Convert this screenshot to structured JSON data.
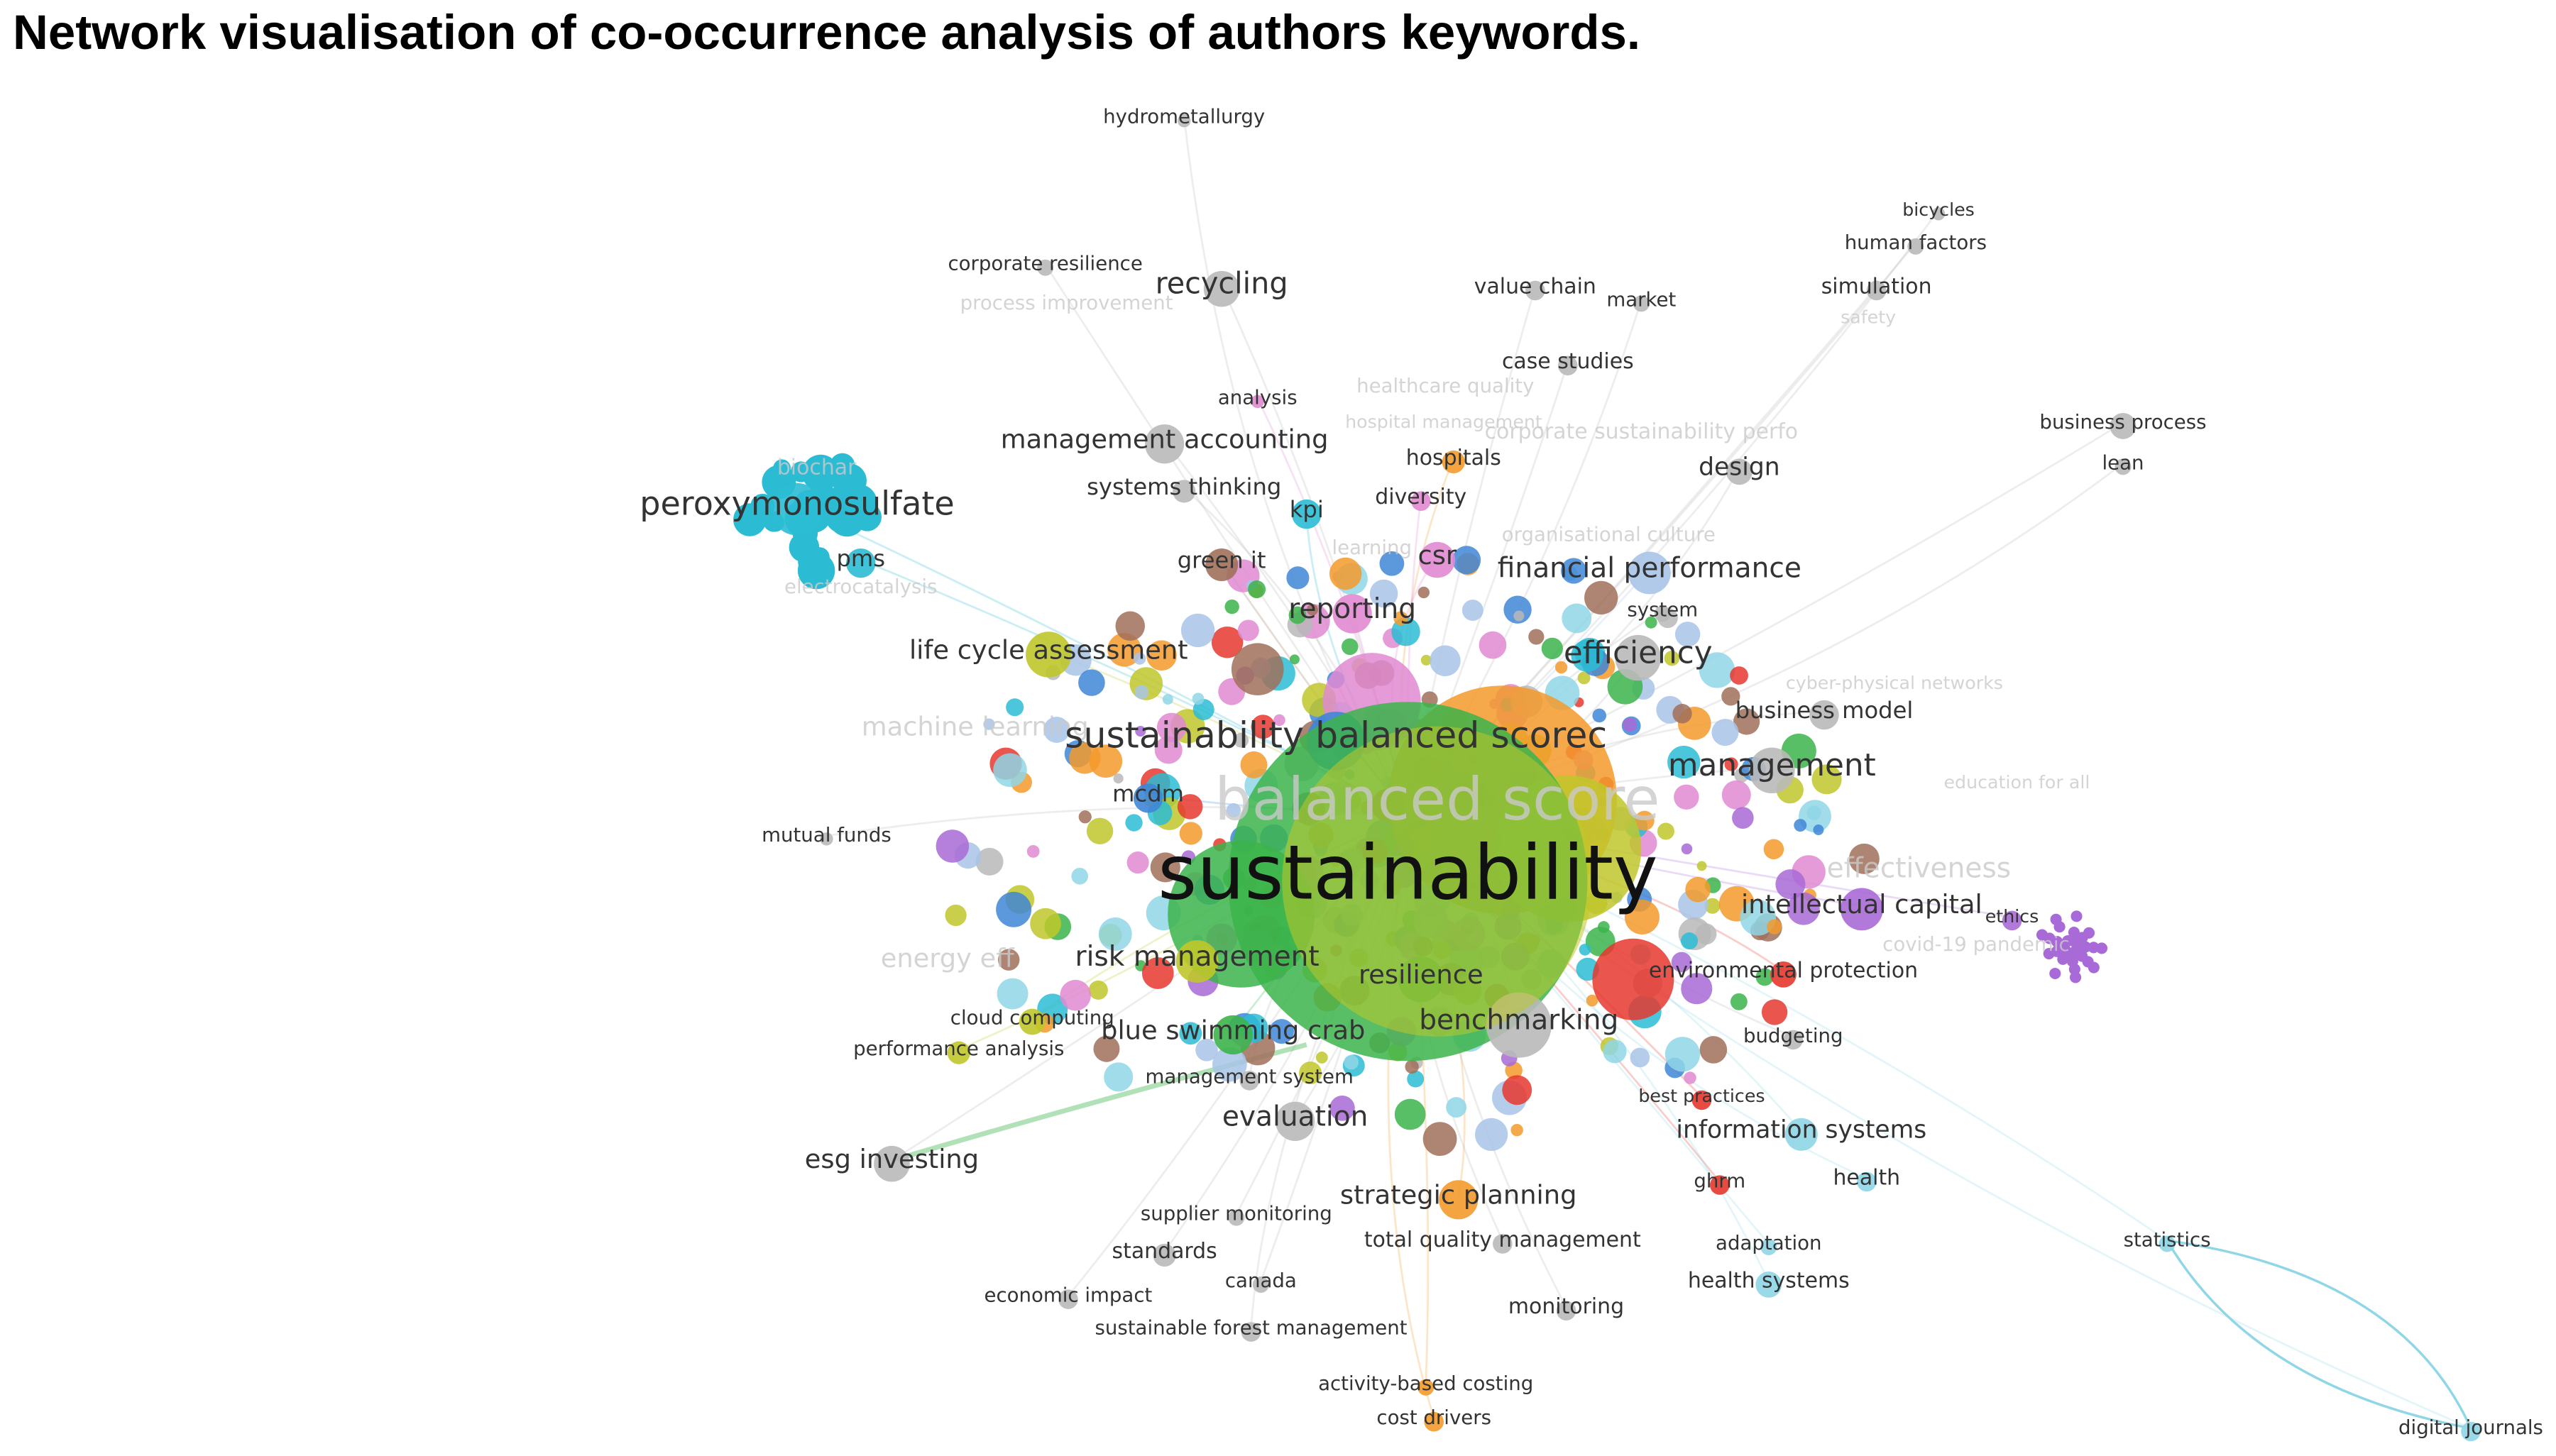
{
  "header": {
    "title": "Network visualisation of co-occurrence analysis of authors keywords."
  },
  "nodes": [
    {
      "label": "hydrometallurgy"
    },
    {
      "label": "corporate resilience"
    },
    {
      "label": "recycling"
    },
    {
      "label": "value chain"
    },
    {
      "label": "market"
    },
    {
      "label": "bicycles"
    },
    {
      "label": "human factors"
    },
    {
      "label": "simulation"
    },
    {
      "label": "case studies"
    },
    {
      "label": "analysis"
    },
    {
      "label": "management accounting"
    },
    {
      "label": "hospitals"
    },
    {
      "label": "design"
    },
    {
      "label": "business process"
    },
    {
      "label": "lean"
    },
    {
      "label": "peroxymonosulfate"
    },
    {
      "label": "systems thinking"
    },
    {
      "label": "kpi"
    },
    {
      "label": "diversity"
    },
    {
      "label": "pms"
    },
    {
      "label": "green it"
    },
    {
      "label": "csr"
    },
    {
      "label": "financial performance"
    },
    {
      "label": "reporting"
    },
    {
      "label": "system"
    },
    {
      "label": "life cycle assessment"
    },
    {
      "label": "efficiency"
    },
    {
      "label": "business model"
    },
    {
      "label": "sustainability balanced scorec"
    },
    {
      "label": "management"
    },
    {
      "label": "mcdm"
    },
    {
      "label": "mutual funds"
    },
    {
      "label": "sustainability"
    },
    {
      "label": "intellectual capital"
    },
    {
      "label": "ethics"
    },
    {
      "label": "risk management"
    },
    {
      "label": "environmental protection"
    },
    {
      "label": "benchmarking"
    },
    {
      "label": "blue swimming crab"
    },
    {
      "label": "cloud computing"
    },
    {
      "label": "budgeting"
    },
    {
      "label": "performance analysis"
    },
    {
      "label": "management system"
    },
    {
      "label": "best practices"
    },
    {
      "label": "evaluation"
    },
    {
      "label": "information systems"
    },
    {
      "label": "esg investing"
    },
    {
      "label": "health"
    },
    {
      "label": "strategic planning"
    },
    {
      "label": "ghrm"
    },
    {
      "label": "supplier monitoring"
    },
    {
      "label": "total quality management"
    },
    {
      "label": "adaptation"
    },
    {
      "label": "statistics"
    },
    {
      "label": "standards"
    },
    {
      "label": "canada"
    },
    {
      "label": "health systems"
    },
    {
      "label": "economic impact"
    },
    {
      "label": "monitoring"
    },
    {
      "label": "sustainable forest management"
    },
    {
      "label": "activity-based costing"
    },
    {
      "label": "cost drivers"
    },
    {
      "label": "digital journals"
    },
    {
      "label": "resilience"
    }
  ],
  "faded_labels": [
    "process improvement",
    "safety",
    "healthcare quality",
    "hospital management",
    "corporate sustainability perfo",
    "biochar",
    "electrocatalysis",
    "machine learning",
    "balanced score",
    "effectiveness",
    "energy eff",
    "organisational culture",
    "cyber-physical networks",
    "education for all",
    "covid-19 pandemic",
    "learning"
  ]
}
